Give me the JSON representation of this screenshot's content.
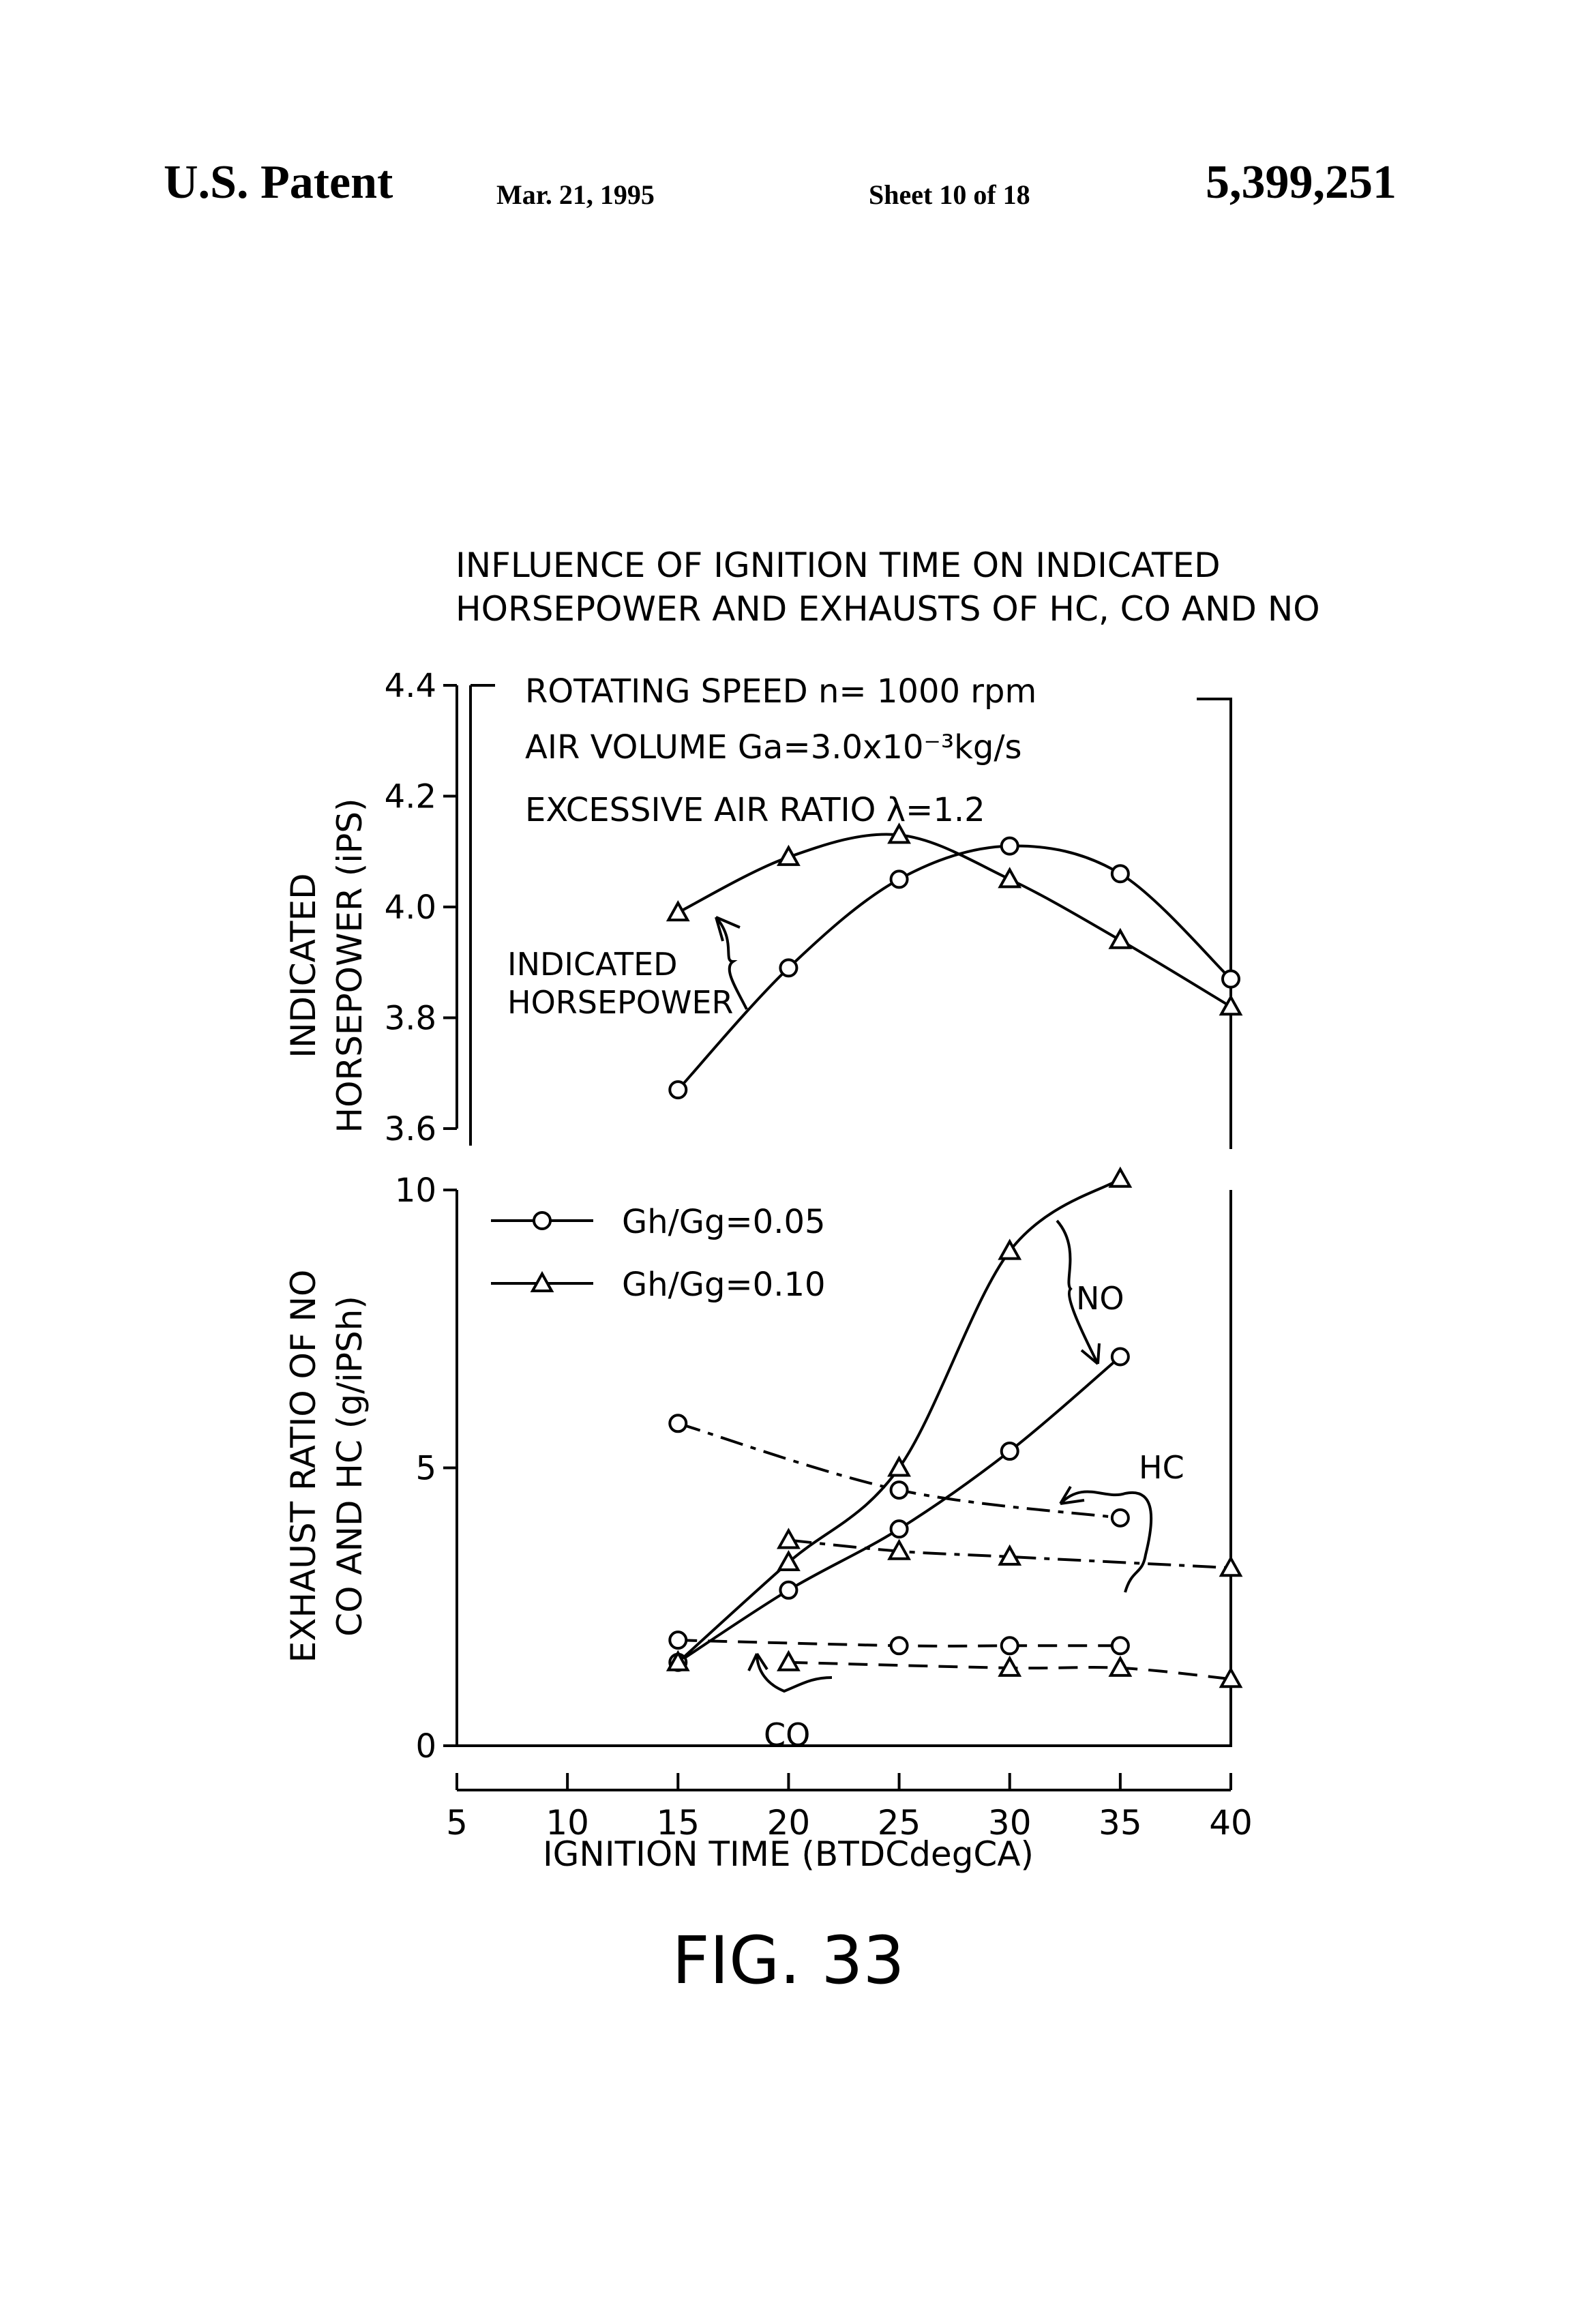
{
  "header": {
    "left": "U.S. Patent",
    "date": "Mar. 21, 1995",
    "sheet": "Sheet 10 of 18",
    "patent_number": "5,399,251"
  },
  "figure_label": "FIG. 33",
  "chart_data": [
    {
      "type": "line",
      "title": "INFLUENCE OF IGNITION TIME ON INDICATED HORSEPOWER AND EXHAUSTS OF HC, CO AND NO",
      "title_lines": [
        "INFLUENCE OF IGNITION TIME ON INDICATED",
        "HORSEPOWER AND EXHAUSTS OF HC, CO AND NO"
      ],
      "conditions": [
        "ROTATING SPEED n= 1000 rpm",
        "AIR VOLUME Ga=3.0x10⁻³kg/s",
        "EXCESSIVE AIR RATIO λ=1.2"
      ],
      "xlabel": "IGNITION TIME (BTDCdegCA)",
      "xlim": [
        5,
        40
      ],
      "xticks": [
        "5",
        "10",
        "15",
        "20",
        "25",
        "30",
        "35",
        "40"
      ],
      "ylabel_lines": [
        "INDICATED",
        "HORSEPOWER (iPS)"
      ],
      "ylim": [
        3.6,
        4.4
      ],
      "yticks": [
        "3.6",
        "3.8",
        "4.0",
        "4.2",
        "4.4"
      ],
      "annotation": "INDICATED HORSEPOWER",
      "annotation_lines": [
        "INDICATED",
        "HORSEPOWER"
      ],
      "series": [
        {
          "marker": "circle",
          "x": [
            15,
            20,
            25,
            30,
            35,
            40
          ],
          "values": [
            3.67,
            3.89,
            4.05,
            4.11,
            4.06,
            3.87
          ]
        },
        {
          "marker": "triangle",
          "x": [
            15,
            20,
            25,
            30,
            35,
            40
          ],
          "values": [
            3.99,
            4.09,
            4.13,
            4.05,
            3.94,
            3.82
          ]
        }
      ]
    },
    {
      "type": "line",
      "xlabel": "IGNITION TIME (BTDCdegCA)",
      "xlim": [
        5,
        40
      ],
      "ylabel_lines": [
        "EXHAUST RATIO OF NO",
        "CO AND HC (g/iPSh)"
      ],
      "ylim": [
        0,
        10
      ],
      "yticks": [
        "0",
        "5",
        "10"
      ],
      "legend": [
        {
          "marker": "circle",
          "label": "Gh/Gg=0.05"
        },
        {
          "marker": "triangle",
          "label": "Gh/Gg=0.10"
        }
      ],
      "annotations": [
        "NO",
        "HC",
        "CO"
      ],
      "series": [
        {
          "gas": "NO",
          "marker": "circle",
          "style": "solid",
          "x": [
            15,
            20,
            25,
            30,
            35
          ],
          "values": [
            1.5,
            2.8,
            3.9,
            5.3,
            7.0
          ]
        },
        {
          "gas": "NO",
          "marker": "triangle",
          "style": "solid",
          "x": [
            15,
            20,
            25,
            30,
            35
          ],
          "values": [
            1.5,
            3.3,
            5.0,
            8.9,
            10.2
          ]
        },
        {
          "gas": "HC",
          "marker": "circle",
          "style": "dashdot",
          "x": [
            15,
            25,
            35
          ],
          "values": [
            5.8,
            4.6,
            4.1
          ]
        },
        {
          "gas": "HC",
          "marker": "triangle",
          "style": "dashdot",
          "x": [
            20,
            25,
            30,
            40
          ],
          "values": [
            3.7,
            3.5,
            3.4,
            3.2
          ]
        },
        {
          "gas": "CO",
          "marker": "circle",
          "style": "dashed",
          "x": [
            15,
            25,
            30,
            35
          ],
          "values": [
            1.9,
            1.8,
            1.8,
            1.8
          ]
        },
        {
          "gas": "CO",
          "marker": "triangle",
          "style": "dashed",
          "x": [
            20,
            30,
            35,
            40
          ],
          "values": [
            1.5,
            1.4,
            1.4,
            1.2
          ]
        }
      ]
    }
  ]
}
